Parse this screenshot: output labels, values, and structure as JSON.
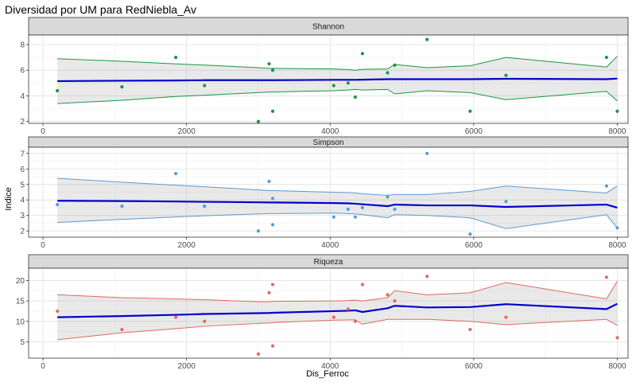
{
  "title": "Diversidad por UM para RedNiebla_Av",
  "xlabel": "Dis_Ferroc",
  "ylabel": "Indice",
  "chart_data": [
    {
      "type": "scatter",
      "panel": "Shannon",
      "color": "#1a9641",
      "xlim": [
        -200,
        8150
      ],
      "ylim": [
        1.85,
        8.75
      ],
      "xticks": [
        0,
        2000,
        4000,
        6000,
        8000
      ],
      "yticks": [
        2,
        4,
        6,
        8
      ],
      "points": [
        [
          200,
          4.4
        ],
        [
          1100,
          4.7
        ],
        [
          1850,
          7.0
        ],
        [
          2250,
          4.8
        ],
        [
          3000,
          2.0
        ],
        [
          3150,
          6.5
        ],
        [
          3200,
          6.0
        ],
        [
          3200,
          2.8
        ],
        [
          4050,
          4.8
        ],
        [
          4250,
          5.0
        ],
        [
          4350,
          3.9
        ],
        [
          4450,
          7.3
        ],
        [
          4800,
          5.8
        ],
        [
          4900,
          6.4
        ],
        [
          5350,
          8.4
        ],
        [
          5950,
          2.8
        ],
        [
          6450,
          5.6
        ],
        [
          7850,
          7.0
        ],
        [
          8000,
          2.8
        ]
      ],
      "smooth_x": [
        200,
        1100,
        1850,
        2250,
        3000,
        3150,
        3200,
        4050,
        4250,
        4350,
        4450,
        4800,
        4900,
        5350,
        5950,
        6450,
        7850,
        8000
      ],
      "smooth_fit": [
        5.15,
        5.18,
        5.2,
        5.22,
        5.22,
        5.22,
        5.22,
        5.25,
        5.25,
        5.25,
        5.26,
        5.3,
        5.3,
        5.3,
        5.3,
        5.33,
        5.3,
        5.35
      ],
      "smooth_lower": [
        3.4,
        3.65,
        3.95,
        4.05,
        4.25,
        4.3,
        4.3,
        4.4,
        4.45,
        4.5,
        4.45,
        4.5,
        4.15,
        4.4,
        4.25,
        3.7,
        4.35,
        3.6
      ],
      "smooth_upper": [
        6.9,
        6.7,
        6.5,
        6.4,
        6.2,
        6.15,
        6.15,
        6.1,
        6.05,
        6.0,
        6.07,
        6.1,
        6.45,
        6.2,
        6.35,
        7.0,
        6.25,
        7.1
      ]
    },
    {
      "type": "scatter",
      "panel": "Simpson",
      "color": "#5b9bd5",
      "xlim": [
        -200,
        8150
      ],
      "ylim": [
        1.6,
        7.4
      ],
      "xticks": [
        0,
        2000,
        4000,
        6000,
        8000
      ],
      "yticks": [
        2,
        3,
        4,
        5,
        6,
        7
      ],
      "points": [
        [
          200,
          3.7
        ],
        [
          1100,
          3.6
        ],
        [
          1850,
          5.7
        ],
        [
          2250,
          3.6
        ],
        [
          3000,
          2.0
        ],
        [
          3150,
          5.2
        ],
        [
          3200,
          4.1
        ],
        [
          3200,
          2.4
        ],
        [
          4050,
          2.9
        ],
        [
          4250,
          3.4
        ],
        [
          4350,
          2.9
        ],
        [
          4450,
          3.5
        ],
        [
          4800,
          4.2
        ],
        [
          4900,
          3.4
        ],
        [
          5350,
          7.0
        ],
        [
          5950,
          1.8
        ],
        [
          6450,
          3.9
        ],
        [
          7850,
          4.9
        ],
        [
          8000,
          2.2
        ]
      ],
      "smooth_x": [
        200,
        1100,
        1850,
        2250,
        3000,
        3150,
        3200,
        4050,
        4250,
        4350,
        4450,
        4800,
        4900,
        5350,
        5950,
        6450,
        7850,
        8000
      ],
      "smooth_fit": [
        3.95,
        3.93,
        3.9,
        3.88,
        3.85,
        3.84,
        3.84,
        3.8,
        3.78,
        3.76,
        3.72,
        3.6,
        3.7,
        3.65,
        3.65,
        3.55,
        3.7,
        3.5
      ],
      "smooth_lower": [
        2.55,
        2.75,
        2.9,
        2.98,
        3.1,
        3.12,
        3.12,
        3.15,
        3.12,
        3.1,
        3.05,
        2.85,
        3.05,
        3.0,
        2.85,
        2.15,
        3.05,
        2.2
      ],
      "smooth_upper": [
        5.4,
        5.15,
        4.95,
        4.85,
        4.65,
        4.6,
        4.6,
        4.5,
        4.48,
        4.45,
        4.4,
        4.3,
        4.35,
        4.35,
        4.55,
        4.9,
        4.45,
        4.9
      ]
    },
    {
      "type": "scatter",
      "panel": "Riqueza",
      "color": "#e06a5f",
      "xlim": [
        -200,
        8150
      ],
      "ylim": [
        1.0,
        23.0
      ],
      "xticks": [
        0,
        2000,
        4000,
        6000,
        8000
      ],
      "yticks": [
        5,
        10,
        15,
        20
      ],
      "points": [
        [
          200,
          12.5
        ],
        [
          1100,
          8.0
        ],
        [
          1850,
          11.0
        ],
        [
          2250,
          10.0
        ],
        [
          3000,
          2.0
        ],
        [
          3150,
          17.0
        ],
        [
          3200,
          19.0
        ],
        [
          3200,
          4.0
        ],
        [
          4050,
          11.0
        ],
        [
          4250,
          13.0
        ],
        [
          4350,
          10.0
        ],
        [
          4450,
          19.0
        ],
        [
          4800,
          16.5
        ],
        [
          4900,
          15.0
        ],
        [
          5350,
          21.0
        ],
        [
          5950,
          8.0
        ],
        [
          6450,
          11.0
        ],
        [
          7850,
          20.8
        ],
        [
          8000,
          6.0
        ]
      ],
      "smooth_x": [
        200,
        1100,
        1850,
        2250,
        3000,
        3150,
        3200,
        4050,
        4250,
        4350,
        4450,
        4800,
        4900,
        5350,
        5950,
        6450,
        7850,
        8000
      ],
      "smooth_fit": [
        11.0,
        11.3,
        11.6,
        11.8,
        12.0,
        12.05,
        12.1,
        12.5,
        12.6,
        12.7,
        12.3,
        13.2,
        13.8,
        13.4,
        13.5,
        14.2,
        13.0,
        14.3
      ],
      "smooth_lower": [
        5.5,
        7.2,
        8.2,
        8.8,
        9.5,
        9.6,
        9.7,
        10.3,
        10.35,
        10.4,
        9.3,
        10.5,
        10.5,
        10.5,
        10.0,
        9.2,
        10.5,
        9.0
      ],
      "smooth_upper": [
        16.5,
        15.8,
        15.5,
        15.3,
        14.8,
        14.8,
        14.9,
        15.0,
        15.1,
        15.2,
        15.0,
        15.8,
        17.5,
        16.5,
        17.0,
        19.5,
        15.5,
        19.8
      ]
    }
  ]
}
